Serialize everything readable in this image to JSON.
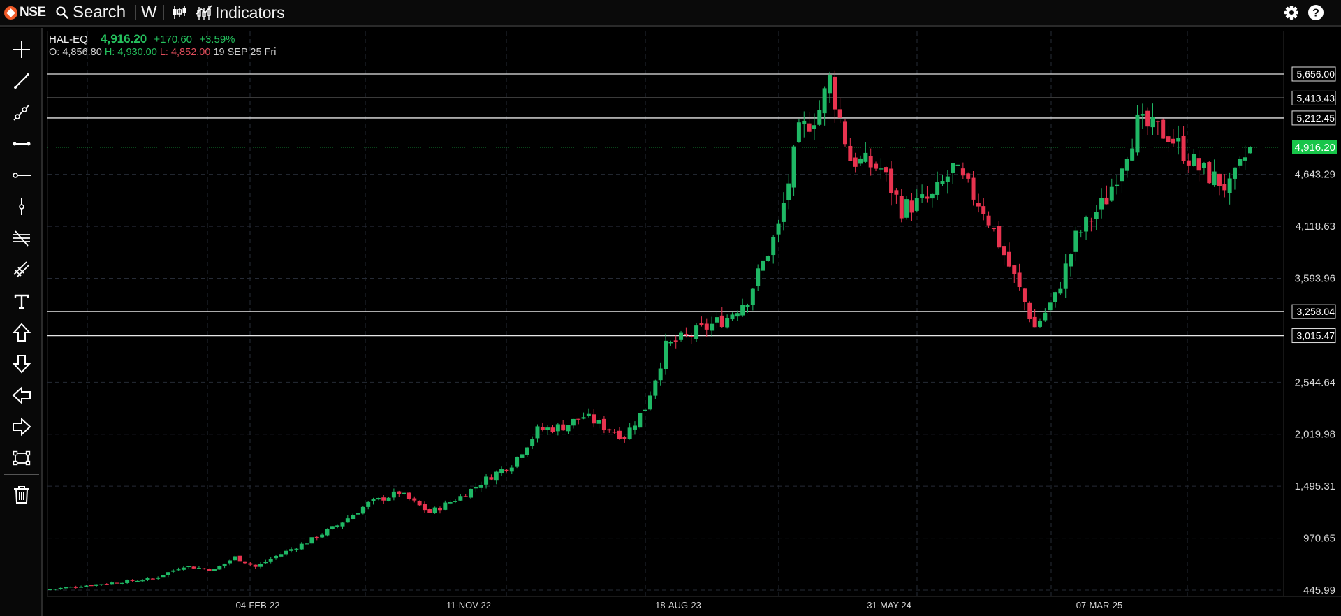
{
  "topbar": {
    "brand": "NSE",
    "search_label": "Search",
    "interval": "W",
    "indicators_label": "Indicators",
    "icons": [
      "nse-logo-icon",
      "search-icon",
      "candlestick-icon",
      "indicators-icon",
      "gear-icon",
      "help-icon"
    ]
  },
  "toolbar": {
    "tools": [
      "crosshair-icon",
      "trend-line-icon",
      "ray-icon",
      "horizontal-segment-icon",
      "horizontal-ray-icon",
      "vertical-line-icon",
      "parallel-channel-icon",
      "pitchfork-icon",
      "text-icon",
      "arrow-up-icon",
      "arrow-down-icon",
      "arrow-left-icon",
      "arrow-right-icon",
      "rectangle-icon",
      "trash-icon"
    ]
  },
  "legend": {
    "symbol": "HAL-EQ",
    "ltp": "4,916.20",
    "change": "+170.60",
    "change_pct": "+3.59%",
    "open_label": "O:",
    "open": "4,856.80",
    "high_label": "H:",
    "high": "4,930.00",
    "low_label": "L:",
    "low": "4,852.00",
    "date": "19 SEP 25 Fri"
  },
  "colors": {
    "background": "#000000",
    "up": "#1fb865",
    "down": "#e8334f",
    "current_price": "#17c549"
  },
  "chart_data": {
    "type": "candlestick",
    "symbol": "HAL-EQ",
    "interval": "W",
    "ylim": [
      445.99,
      5656.0
    ],
    "y_tick_labels": [
      "5,656.00",
      "5,413.43",
      "5,212.45",
      "4,643.29",
      "4,118.63",
      "3,593.96",
      "3,258.04",
      "3,015.47",
      "2,544.64",
      "2,019.98",
      "1,495.31",
      "970.65",
      "445.99"
    ],
    "axis_ticks": [
      "4,643.29",
      "4,118.63",
      "3,593.96",
      "2,544.64",
      "2,019.98",
      "1,495.31",
      "970.65",
      "445.99"
    ],
    "x_tick_labels": [
      "04-FEB-22",
      "11-NOV-22",
      "18-AUG-23",
      "31-MAY-24",
      "07-MAR-25"
    ],
    "horizontal_lines": [
      "5,656.00",
      "5,413.43",
      "5,212.45",
      "3,258.04",
      "3,015.47"
    ],
    "current_price": "4,916.20",
    "grid": true,
    "close_path": [
      {
        "x": 0,
        "y": 455
      },
      {
        "x": 12,
        "y": 520
      },
      {
        "x": 20,
        "y": 560
      },
      {
        "x": 26,
        "y": 690
      },
      {
        "x": 32,
        "y": 650
      },
      {
        "x": 36,
        "y": 780
      },
      {
        "x": 40,
        "y": 680
      },
      {
        "x": 44,
        "y": 790
      },
      {
        "x": 50,
        "y": 930
      },
      {
        "x": 56,
        "y": 1100
      },
      {
        "x": 62,
        "y": 1320
      },
      {
        "x": 68,
        "y": 1430
      },
      {
        "x": 74,
        "y": 1230
      },
      {
        "x": 80,
        "y": 1390
      },
      {
        "x": 86,
        "y": 1600
      },
      {
        "x": 90,
        "y": 1720
      },
      {
        "x": 95,
        "y": 2060
      },
      {
        "x": 100,
        "y": 2100
      },
      {
        "x": 104,
        "y": 2200
      },
      {
        "x": 112,
        "y": 2000
      },
      {
        "x": 116,
        "y": 2290
      },
      {
        "x": 120,
        "y": 2900
      },
      {
        "x": 126,
        "y": 3050
      },
      {
        "x": 132,
        "y": 3200
      },
      {
        "x": 136,
        "y": 3400
      },
      {
        "x": 142,
        "y": 4100
      },
      {
        "x": 146,
        "y": 5050
      },
      {
        "x": 150,
        "y": 5300
      },
      {
        "x": 152,
        "y": 5600
      },
      {
        "x": 156,
        "y": 4800
      },
      {
        "x": 162,
        "y": 4700
      },
      {
        "x": 166,
        "y": 4300
      },
      {
        "x": 172,
        "y": 4400
      },
      {
        "x": 176,
        "y": 4700
      },
      {
        "x": 182,
        "y": 4300
      },
      {
        "x": 188,
        "y": 3600
      },
      {
        "x": 192,
        "y": 3100
      },
      {
        "x": 196,
        "y": 3400
      },
      {
        "x": 200,
        "y": 4000
      },
      {
        "x": 206,
        "y": 4400
      },
      {
        "x": 212,
        "y": 5150
      },
      {
        "x": 218,
        "y": 5050
      },
      {
        "x": 224,
        "y": 4700
      },
      {
        "x": 230,
        "y": 4500
      },
      {
        "x": 234,
        "y": 4916.2
      }
    ]
  }
}
